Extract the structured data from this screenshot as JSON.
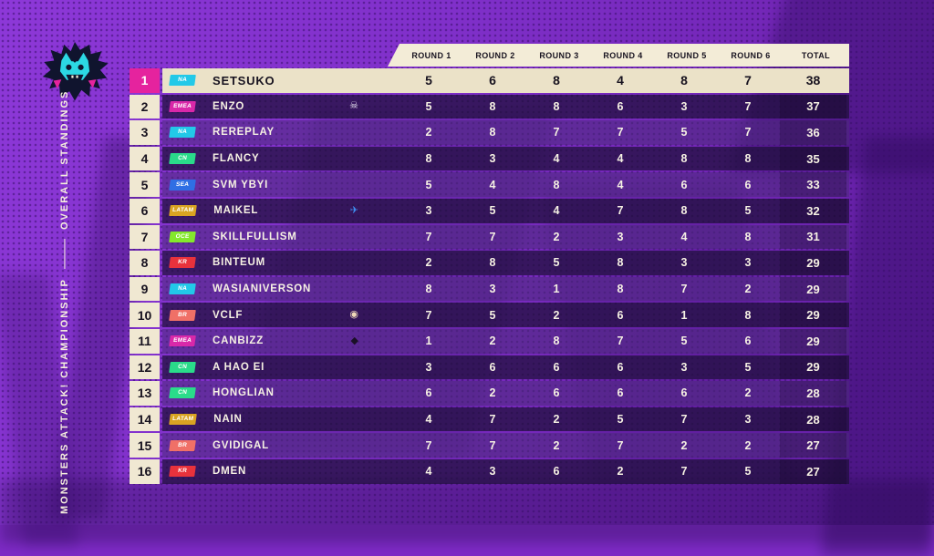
{
  "sidebar": {
    "title": "MONSTERS ATTACK! CHAMPIONSHIP",
    "divider": "———",
    "subtitle": "OVERALL STANDINGS",
    "logo": "monster-starburst-badge"
  },
  "colors": {
    "background_purple": "#7e2bc6",
    "header_cream": "#f3ecd7",
    "row_cream": "#ebe2c8",
    "rank_highlight_pink": "#e5239e",
    "row_dark": "rgba(30,15,58,0.72)",
    "row_light": "rgba(76,42,124,0.55)",
    "text_cream": "#f6f1e3"
  },
  "icons": {
    "skull": {
      "glyph": "☠",
      "color": "#e8e4f2"
    },
    "plane": {
      "glyph": "✈",
      "color": "#3f8df0"
    },
    "logo": {
      "glyph": "◉",
      "color": "#f0d9b8"
    },
    "claw": {
      "glyph": "◆",
      "color": "#1a1026"
    }
  },
  "table": {
    "headers": [
      "ROUND 1",
      "ROUND 2",
      "ROUND 3",
      "ROUND 4",
      "ROUND 5",
      "ROUND 6",
      "TOTAL"
    ],
    "rows": [
      {
        "rank": "1",
        "region": "NA",
        "region_color": "#22c9e8",
        "name": "SETSUKO",
        "icon": null,
        "scores": [
          5,
          6,
          8,
          4,
          8,
          7
        ],
        "total": 38,
        "highlight": true
      },
      {
        "rank": "2",
        "region": "EMEA",
        "region_color": "#d928a9",
        "name": "ENZO",
        "icon": "skull",
        "scores": [
          5,
          8,
          8,
          6,
          3,
          7
        ],
        "total": 37,
        "highlight": false
      },
      {
        "rank": "3",
        "region": "NA",
        "region_color": "#22c9e8",
        "name": "REREPLAY",
        "icon": null,
        "scores": [
          2,
          8,
          7,
          7,
          5,
          7
        ],
        "total": 36,
        "highlight": false
      },
      {
        "rank": "4",
        "region": "CN",
        "region_color": "#2adb8a",
        "name": "FLANCY",
        "icon": null,
        "scores": [
          8,
          3,
          4,
          4,
          8,
          8
        ],
        "total": 35,
        "highlight": false
      },
      {
        "rank": "5",
        "region": "SEA",
        "region_color": "#2f6fe4",
        "name": "SVM YBYI",
        "icon": null,
        "scores": [
          5,
          4,
          8,
          4,
          6,
          6
        ],
        "total": 33,
        "highlight": false
      },
      {
        "rank": "6",
        "region": "LATAM",
        "region_color": "#d9a422",
        "name": "MAIKEL",
        "icon": "plane",
        "scores": [
          3,
          5,
          4,
          7,
          8,
          5
        ],
        "total": 32,
        "highlight": false
      },
      {
        "rank": "7",
        "region": "OCE",
        "region_color": "#84e82c",
        "name": "SKILLFULLISM",
        "icon": null,
        "scores": [
          7,
          7,
          2,
          3,
          4,
          8
        ],
        "total": 31,
        "highlight": false
      },
      {
        "rank": "8",
        "region": "KR",
        "region_color": "#e8323c",
        "name": "BINTEUM",
        "icon": null,
        "scores": [
          2,
          8,
          5,
          8,
          3,
          3
        ],
        "total": 29,
        "highlight": false
      },
      {
        "rank": "9",
        "region": "NA",
        "region_color": "#22c9e8",
        "name": "WASIANIVERSON",
        "icon": null,
        "scores": [
          8,
          3,
          1,
          8,
          7,
          2
        ],
        "total": 29,
        "highlight": false
      },
      {
        "rank": "10",
        "region": "BR",
        "region_color": "#f07067",
        "name": "VCLF",
        "icon": "logo",
        "scores": [
          7,
          5,
          2,
          6,
          1,
          8
        ],
        "total": 29,
        "highlight": false
      },
      {
        "rank": "11",
        "region": "EMEA",
        "region_color": "#d928a9",
        "name": "CANBIZZ",
        "icon": "claw",
        "scores": [
          1,
          2,
          8,
          7,
          5,
          6
        ],
        "total": 29,
        "highlight": false
      },
      {
        "rank": "12",
        "region": "CN",
        "region_color": "#2adb8a",
        "name": "A HAO EI",
        "icon": null,
        "scores": [
          3,
          6,
          6,
          6,
          3,
          5
        ],
        "total": 29,
        "highlight": false
      },
      {
        "rank": "13",
        "region": "CN",
        "region_color": "#2adb8a",
        "name": "HONGLIAN",
        "icon": null,
        "scores": [
          6,
          2,
          6,
          6,
          6,
          2
        ],
        "total": 28,
        "highlight": false
      },
      {
        "rank": "14",
        "region": "LATAM",
        "region_color": "#d9a422",
        "name": "NAIN",
        "icon": null,
        "scores": [
          4,
          7,
          2,
          5,
          7,
          3
        ],
        "total": 28,
        "highlight": false
      },
      {
        "rank": "15",
        "region": "BR",
        "region_color": "#f07067",
        "name": "GVIDIGAL",
        "icon": null,
        "scores": [
          7,
          7,
          2,
          7,
          2,
          2
        ],
        "total": 27,
        "highlight": false
      },
      {
        "rank": "16",
        "region": "KR",
        "region_color": "#e8323c",
        "name": "DMEN",
        "icon": null,
        "scores": [
          4,
          3,
          6,
          2,
          7,
          5
        ],
        "total": 27,
        "highlight": false
      }
    ]
  }
}
